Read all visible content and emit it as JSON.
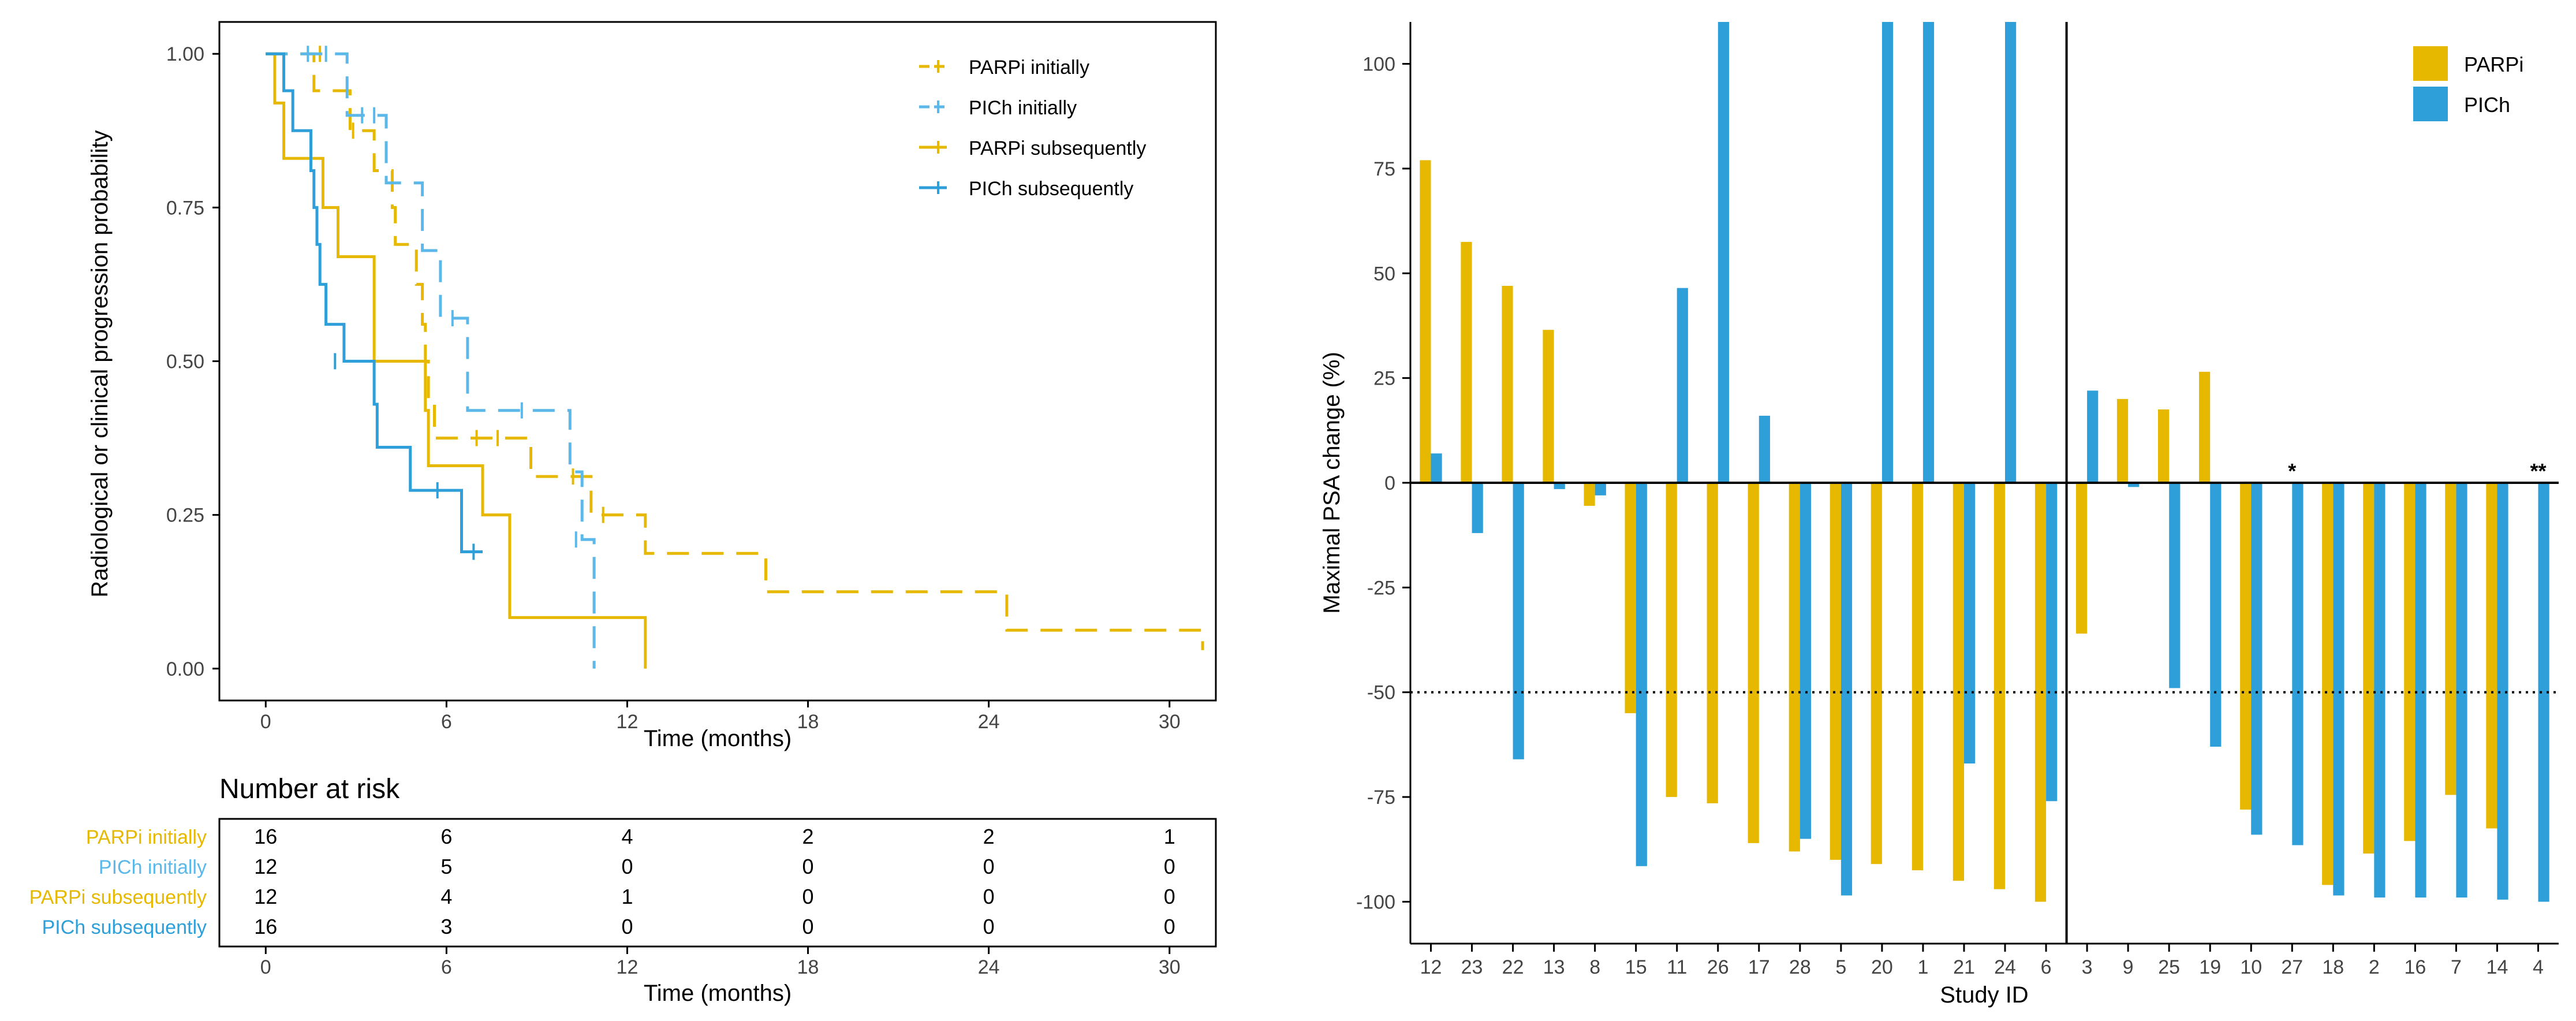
{
  "colors": {
    "parp": "#E6B800",
    "pich": "#2E9FD9",
    "pich_light": "#5BB8E8",
    "axis": "#000000",
    "tick_text": "#444444"
  },
  "chart_data": [
    {
      "type": "line",
      "subtype": "kaplan-meier",
      "xlabel": "Time (months)",
      "ylabel": "Radiological or clinical progression probability",
      "xlim": [
        -1.5,
        31.5
      ],
      "ylim": [
        -0.05,
        1.05
      ],
      "xticks": [
        0,
        6,
        12,
        18,
        24,
        30
      ],
      "yticks": [
        0.0,
        0.25,
        0.5,
        0.75,
        1.0
      ],
      "ytick_labels": [
        "0.00",
        "0.25",
        "0.50",
        "0.75",
        "1.00"
      ],
      "legend": [
        "PARPi initially",
        "PICh initially",
        "PARPi subsequently",
        "PICh subsequently"
      ],
      "series": [
        {
          "name": "PARPi initially",
          "color_key": "parp",
          "dashed": true,
          "steps": [
            [
              0,
              1.0
            ],
            [
              1.5,
              1.0
            ],
            [
              1.6,
              0.94
            ],
            [
              2.6,
              0.94
            ],
            [
              2.8,
              0.875
            ],
            [
              3.5,
              0.875
            ],
            [
              3.6,
              0.81
            ],
            [
              3.8,
              0.81
            ],
            [
              4.2,
              0.75
            ],
            [
              4.3,
              0.69
            ],
            [
              5.0,
              0.625
            ],
            [
              5.2,
              0.56
            ],
            [
              5.3,
              0.5
            ],
            [
              5.4,
              0.4375
            ],
            [
              5.6,
              0.375
            ],
            [
              8.6,
              0.375
            ],
            [
              8.8,
              0.3125
            ],
            [
              10.5,
              0.3125
            ],
            [
              10.8,
              0.25
            ],
            [
              12.5,
              0.25
            ],
            [
              12.6,
              0.1875
            ],
            [
              16.5,
              0.1875
            ],
            [
              16.6,
              0.125
            ],
            [
              24.5,
              0.125
            ],
            [
              24.6,
              0.0625
            ],
            [
              31.1,
              0.0625
            ],
            [
              31.1,
              0.03
            ]
          ],
          "censors": [
            [
              1.8,
              1.0
            ],
            [
              2.9,
              0.875
            ],
            [
              7.0,
              0.375
            ],
            [
              7.7,
              0.375
            ],
            [
              10.2,
              0.3125
            ],
            [
              11.2,
              0.25
            ]
          ]
        },
        {
          "name": "PICh initially",
          "color_key": "pich_light",
          "dashed": true,
          "steps": [
            [
              0,
              1.0
            ],
            [
              2.6,
              1.0
            ],
            [
              2.7,
              0.9
            ],
            [
              3.9,
              0.9
            ],
            [
              4.0,
              0.79
            ],
            [
              5.1,
              0.79
            ],
            [
              5.2,
              0.68
            ],
            [
              5.7,
              0.68
            ],
            [
              5.8,
              0.57
            ],
            [
              6.6,
              0.57
            ],
            [
              6.7,
              0.42
            ],
            [
              10.0,
              0.42
            ],
            [
              10.1,
              0.32
            ],
            [
              10.4,
              0.32
            ],
            [
              10.5,
              0.21
            ],
            [
              10.9,
              0.21
            ],
            [
              10.9,
              0.0
            ]
          ],
          "censors": [
            [
              1.4,
              1.0
            ],
            [
              2.0,
              1.0
            ],
            [
              3.2,
              0.9
            ],
            [
              3.6,
              0.9
            ],
            [
              6.2,
              0.57
            ],
            [
              8.5,
              0.42
            ],
            [
              10.3,
              0.21
            ]
          ]
        },
        {
          "name": "PARPi subsequently",
          "color_key": "parp",
          "dashed": false,
          "steps": [
            [
              0,
              1.0
            ],
            [
              0.3,
              0.92
            ],
            [
              0.6,
              0.83
            ],
            [
              1.8,
              0.83
            ],
            [
              1.9,
              0.75
            ],
            [
              2.3,
              0.75
            ],
            [
              2.4,
              0.67
            ],
            [
              3.5,
              0.67
            ],
            [
              3.6,
              0.5
            ],
            [
              5.2,
              0.5
            ],
            [
              5.3,
              0.42
            ],
            [
              5.4,
              0.33
            ],
            [
              7.1,
              0.33
            ],
            [
              7.2,
              0.25
            ],
            [
              8.0,
              0.25
            ],
            [
              8.1,
              0.083
            ],
            [
              12.6,
              0.083
            ],
            [
              12.6,
              0.0
            ]
          ],
          "censors": []
        },
        {
          "name": "PICh subsequently",
          "color_key": "pich",
          "dashed": false,
          "steps": [
            [
              0,
              1.0
            ],
            [
              0.5,
              1.0
            ],
            [
              0.6,
              0.94
            ],
            [
              0.8,
              0.94
            ],
            [
              0.9,
              0.875
            ],
            [
              1.4,
              0.875
            ],
            [
              1.5,
              0.81
            ],
            [
              1.6,
              0.75
            ],
            [
              1.7,
              0.69
            ],
            [
              1.8,
              0.625
            ],
            [
              2.0,
              0.56
            ],
            [
              2.5,
              0.56
            ],
            [
              2.6,
              0.5
            ],
            [
              3.5,
              0.5
            ],
            [
              3.6,
              0.43
            ],
            [
              3.7,
              0.36
            ],
            [
              4.7,
              0.36
            ],
            [
              4.8,
              0.29
            ],
            [
              6.4,
              0.29
            ],
            [
              6.5,
              0.19
            ],
            [
              7.2,
              0.19
            ]
          ],
          "censors": [
            [
              2.3,
              0.5
            ],
            [
              5.7,
              0.29
            ],
            [
              6.9,
              0.19
            ]
          ]
        }
      ]
    },
    {
      "type": "table",
      "title": "Number at risk",
      "xlabel": "Time (months)",
      "columns": [
        "0",
        "6",
        "12",
        "18",
        "24",
        "30"
      ],
      "rows": [
        {
          "label": "PARPi initially",
          "color_key": "parp",
          "values": [
            "16",
            "6",
            "4",
            "2",
            "2",
            "1"
          ]
        },
        {
          "label": "PICh initially",
          "color_key": "pich_light",
          "values": [
            "12",
            "5",
            "0",
            "0",
            "0",
            "0"
          ]
        },
        {
          "label": "PARPi subsequently",
          "color_key": "parp",
          "values": [
            "12",
            "4",
            "1",
            "0",
            "0",
            "0"
          ]
        },
        {
          "label": "PICh subsequently",
          "color_key": "pich",
          "values": [
            "16",
            "3",
            "0",
            "0",
            "0",
            "0"
          ]
        }
      ]
    },
    {
      "type": "bar",
      "subtype": "waterfall",
      "xlabel": "Study ID",
      "ylabel": "Maximal PSA change (%)",
      "ylim": [
        -110,
        110
      ],
      "yticks": [
        -100,
        -75,
        -50,
        -25,
        0,
        25,
        50,
        75,
        100
      ],
      "ytick_labels": [
        "-100",
        "-75",
        "-50",
        "-25",
        "0",
        "25",
        "50",
        "75",
        "100"
      ],
      "reference_line": -50,
      "group_divider_after": "6",
      "legend": [
        "PARPi",
        "PICh"
      ],
      "categories": [
        "12",
        "23",
        "22",
        "13",
        "8",
        "15",
        "11",
        "26",
        "17",
        "28",
        "5",
        "20",
        "1",
        "21",
        "24",
        "6",
        "3",
        "9",
        "25",
        "19",
        "10",
        "27",
        "18",
        "2",
        "16",
        "7",
        "14",
        "4"
      ],
      "series": [
        {
          "name": "PARPi",
          "color_key": "parp",
          "values": [
            77,
            57.5,
            47,
            36.5,
            -5.5,
            -55,
            -75,
            -76.5,
            -86,
            -88,
            -90,
            -91,
            -92.5,
            -95,
            -97,
            -100,
            -36,
            20,
            17.5,
            26.5,
            -78,
            null,
            -96,
            -88.5,
            -85.5,
            -74.5,
            -82.5,
            null
          ]
        },
        {
          "name": "PICh",
          "color_key": "pich",
          "values": [
            7,
            -12,
            -66,
            -1.5,
            -3,
            -91.5,
            46.5,
            110,
            16,
            -85,
            -98.5,
            110,
            110,
            -67,
            110,
            -76,
            22,
            -1,
            -49,
            -63,
            -84,
            -86.5,
            -98.5,
            -99,
            -99,
            -99,
            -99.5,
            -100
          ]
        }
      ],
      "annotations": [
        {
          "category": "27",
          "text": "*"
        },
        {
          "category": "4",
          "text": "**"
        }
      ]
    }
  ]
}
